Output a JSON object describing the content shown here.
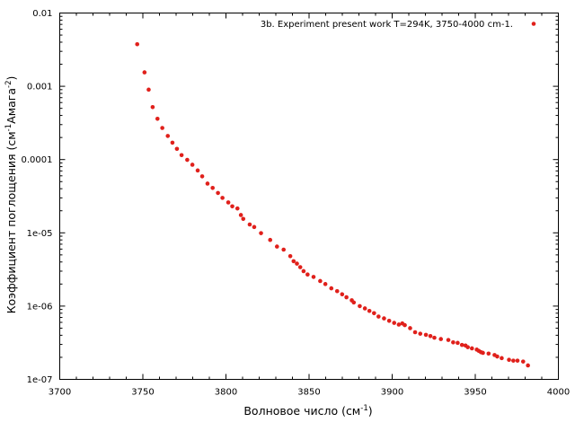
{
  "chart_data": {
    "type": "scatter",
    "xlabel": "Волновое число (см",
    "xlabel_sup": "-1",
    "xlabel_tail": ")",
    "ylabel": "Коэффициент поглощения (см",
    "ylabel_sup1": "-1",
    "ylabel_mid": "Амага",
    "ylabel_sup2": "-2",
    "ylabel_tail": ")",
    "xlim": [
      3700,
      4000
    ],
    "ylim": [
      1e-07,
      0.01
    ],
    "yscale": "log",
    "grid": false,
    "legend_position": "top-right",
    "x_ticks": [
      3700,
      3750,
      3800,
      3850,
      3900,
      3950,
      4000
    ],
    "x_tick_labels": [
      "3700",
      "3750",
      "3800",
      "3850",
      "3900",
      "3950",
      "4000"
    ],
    "y_ticks": [
      1e-07,
      1e-06,
      1e-05,
      0.0001,
      0.001,
      0.01
    ],
    "y_tick_labels": [
      "1e-07",
      "1e-06",
      "1e-05",
      "0.0001",
      "0.001",
      "0.01"
    ],
    "series": [
      {
        "name": "3b. Experiment  present work T=294K, 3750-4000 cm-1.",
        "color": "#e0201b",
        "x": [
          3746.6,
          3751.0,
          3753.5,
          3755.9,
          3758.8,
          3761.7,
          3765.0,
          3767.8,
          3770.5,
          3773.3,
          3776.7,
          3779.8,
          3783.0,
          3785.7,
          3788.9,
          3792.0,
          3795.2,
          3797.9,
          3801.4,
          3803.8,
          3806.9,
          3809.0,
          3810.4,
          3814.3,
          3817.0,
          3821.1,
          3826.6,
          3830.7,
          3834.7,
          3838.7,
          3840.7,
          3842.7,
          3844.7,
          3846.7,
          3849.1,
          3852.7,
          3856.7,
          3859.8,
          3863.4,
          3866.9,
          3869.9,
          3872.5,
          3875.7,
          3876.9,
          3880.5,
          3883.6,
          3886.3,
          3889.1,
          3891.8,
          3895.1,
          3898.2,
          3901.2,
          3904.0,
          3906.1,
          3907.6,
          3910.8,
          3913.8,
          3916.9,
          3920.3,
          3923.0,
          3925.4,
          3929.3,
          3933.8,
          3936.7,
          3939.4,
          3942.0,
          3944.1,
          3945.5,
          3948.0,
          3950.9,
          3952.1,
          3953.4,
          3954.6,
          3958.0,
          3961.6,
          3963.2,
          3965.9,
          3970.3,
          3972.9,
          3975.4,
          3978.8,
          3981.7
        ],
        "y": [
          0.00375,
          0.00155,
          0.0009,
          0.00052,
          0.00036,
          0.00027,
          0.00021,
          0.00017,
          0.00014,
          0.000115,
          9.9e-05,
          8.5e-05,
          7.1e-05,
          5.9e-05,
          4.7e-05,
          4.1e-05,
          3.5e-05,
          3e-05,
          2.6e-05,
          2.3e-05,
          2.15e-05,
          1.75e-05,
          1.55e-05,
          1.3e-05,
          1.2e-05,
          9.9e-06,
          8e-06,
          6.5e-06,
          5.9e-06,
          4.8e-06,
          4.1e-06,
          3.8e-06,
          3.4e-06,
          3e-06,
          2.7e-06,
          2.5e-06,
          2.2e-06,
          2e-06,
          1.75e-06,
          1.6e-06,
          1.45e-06,
          1.32e-06,
          1.2e-06,
          1.12e-06,
          1e-06,
          9.3e-07,
          8.6e-07,
          8e-07,
          7.2e-07,
          6.8e-07,
          6.3e-07,
          5.9e-07,
          5.6e-07,
          5.8e-07,
          5.5e-07,
          5e-07,
          4.4e-07,
          4.2e-07,
          4.05e-07,
          3.9e-07,
          3.7e-07,
          3.55e-07,
          3.45e-07,
          3.2e-07,
          3.15e-07,
          2.95e-07,
          2.9e-07,
          2.75e-07,
          2.65e-07,
          2.55e-07,
          2.45e-07,
          2.35e-07,
          2.3e-07,
          2.25e-07,
          2.15e-07,
          2.05e-07,
          1.95e-07,
          1.85e-07,
          1.8e-07,
          1.8e-07,
          1.75e-07,
          1.55e-07
        ]
      }
    ]
  }
}
